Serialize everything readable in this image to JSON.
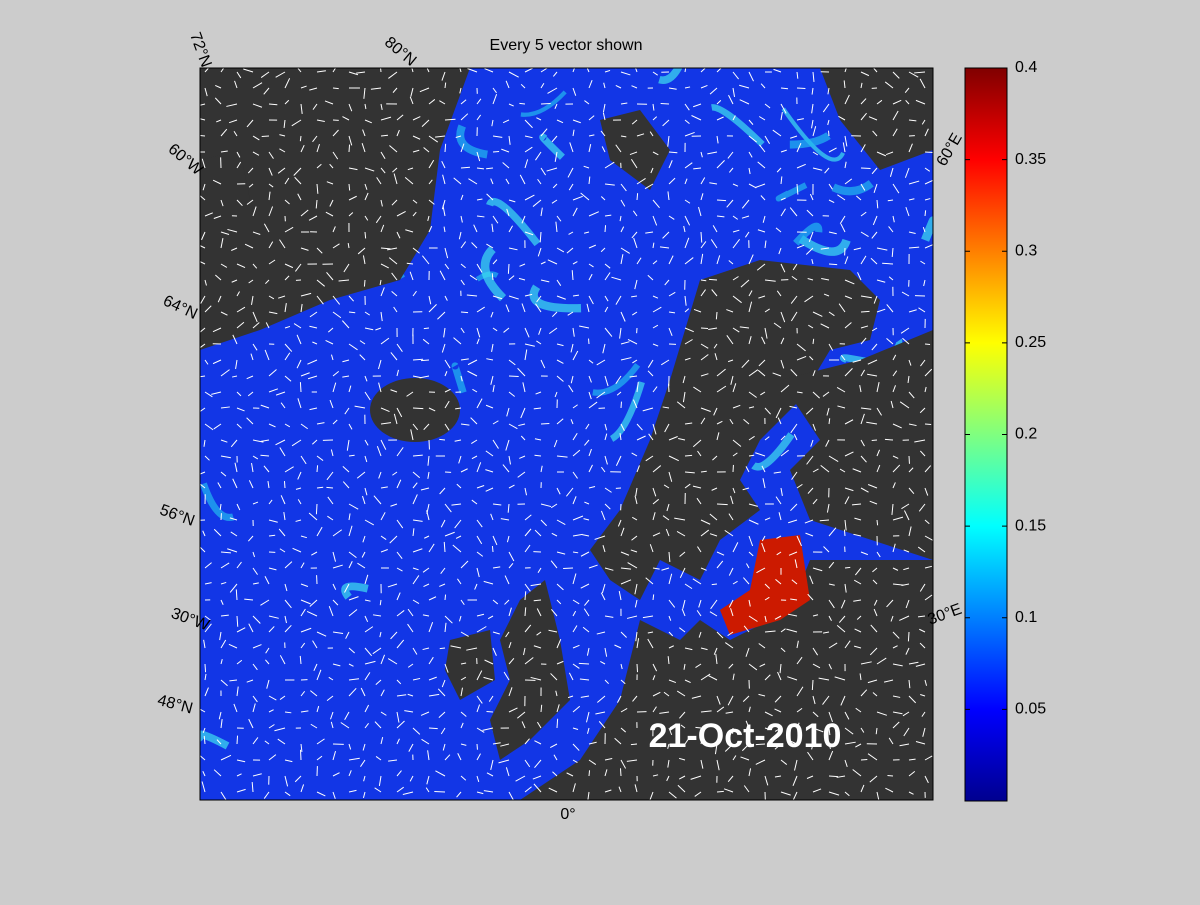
{
  "title": "Every 5 vector shown",
  "date": "21-Oct-2010",
  "map_labels": {
    "lat_72": "72°N",
    "lat_80": "80°N",
    "lon_60w": "60°W",
    "lat_64": "64°N",
    "lat_56": "56°N",
    "lon_30w": "30°W",
    "lat_48": "48°N",
    "lon_0": "0°",
    "lon_30e": "30°E",
    "lon_60e": "60°E"
  },
  "colorbar": {
    "clim": [
      0,
      0.4
    ],
    "ticks": [
      0.05,
      0.1,
      0.15,
      0.2,
      0.25,
      0.3,
      0.35,
      0.4
    ]
  }
}
